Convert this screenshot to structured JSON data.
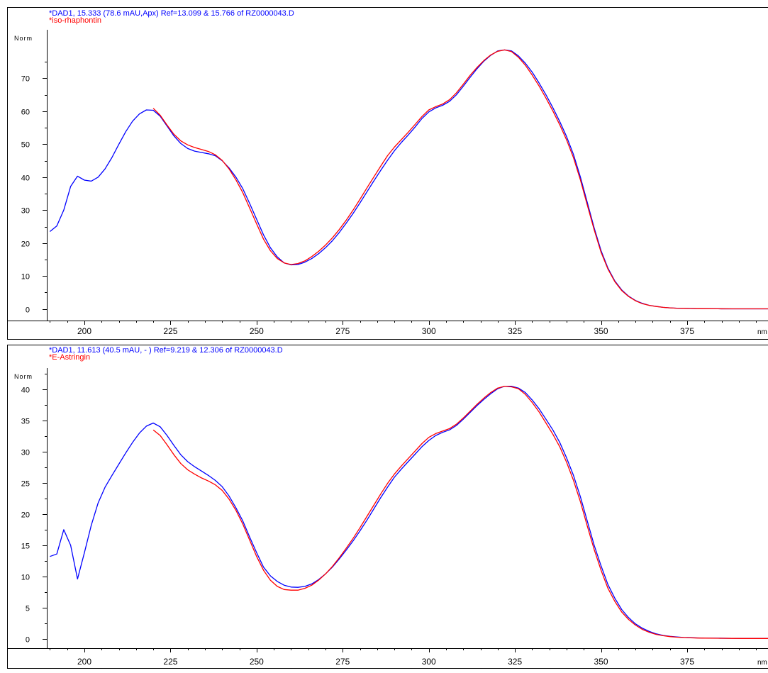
{
  "colors": {
    "blue": "#0000ff",
    "red": "#ff0000",
    "axis": "#000000"
  },
  "chart_data": [
    {
      "type": "line",
      "header_blue": "*DAD1, 15.333 (78.6 mAU,Apx) Ref=13.099 & 15.766 of RZ0000043.D",
      "header_red": "*iso-rhaphontin",
      "ylabel": "Norm",
      "xunit": "nm",
      "xlim": [
        190,
        400
      ],
      "ylim": [
        -3.5,
        83
      ],
      "xticks": [
        200,
        225,
        250,
        275,
        300,
        325,
        350,
        375
      ],
      "yticks": [
        0,
        10,
        20,
        30,
        40,
        50,
        60,
        70
      ],
      "series": [
        {
          "color": "blue",
          "x": [
            190,
            192,
            194,
            196,
            198,
            200,
            202,
            204,
            206,
            208,
            210,
            212,
            214,
            216,
            218,
            220,
            222,
            224,
            226,
            228,
            230,
            232,
            234,
            236,
            238,
            240,
            242,
            244,
            246,
            248,
            250,
            252,
            254,
            256,
            258,
            260,
            262,
            264,
            266,
            268,
            270,
            272,
            274,
            276,
            278,
            280,
            282,
            284,
            286,
            288,
            290,
            292,
            294,
            296,
            298,
            300,
            302,
            304,
            306,
            308,
            310,
            312,
            314,
            316,
            318,
            320,
            322,
            324,
            326,
            328,
            330,
            332,
            334,
            336,
            338,
            340,
            342,
            344,
            346,
            348,
            350,
            352,
            354,
            356,
            358,
            360,
            362,
            364,
            366,
            368,
            370,
            372,
            374,
            376,
            378,
            380,
            384,
            388,
            392,
            396,
            400
          ],
          "y": [
            23.5,
            25.2,
            30,
            37.2,
            40.3,
            39.1,
            38.8,
            40,
            42.5,
            46,
            50,
            53.8,
            57,
            59.2,
            60.4,
            60.3,
            58.5,
            55.5,
            52.5,
            50.2,
            48.7,
            47.9,
            47.5,
            47.1,
            46.5,
            45,
            42.8,
            40,
            36.5,
            32,
            27.2,
            22.5,
            18.6,
            15.8,
            14,
            13.4,
            13.5,
            14.2,
            15.3,
            16.8,
            18.6,
            20.7,
            23.2,
            26,
            29,
            32.2,
            35.5,
            38.8,
            42,
            45.1,
            48,
            50.5,
            52.8,
            55.2,
            57.8,
            59.8,
            61,
            61.8,
            63,
            65,
            67.6,
            70.3,
            72.9,
            75.2,
            77,
            78.3,
            78.6,
            78.3,
            76.8,
            74.6,
            71.9,
            68.6,
            65,
            61.1,
            56.9,
            52.3,
            46.9,
            40.1,
            32.4,
            24.6,
            17.7,
            12.4,
            8.5,
            5.8,
            3.9,
            2.6,
            1.7,
            1.1,
            0.8,
            0.5,
            0.35,
            0.25,
            0.2,
            0.15,
            0.12,
            0.1,
            0.08,
            0.05,
            0.05,
            0.05,
            0.05
          ]
        },
        {
          "color": "red",
          "x": [
            220,
            222,
            224,
            226,
            228,
            230,
            232,
            234,
            236,
            238,
            240,
            242,
            244,
            246,
            248,
            250,
            252,
            254,
            256,
            258,
            260,
            262,
            264,
            266,
            268,
            270,
            272,
            274,
            276,
            278,
            280,
            282,
            284,
            286,
            288,
            290,
            292,
            294,
            296,
            298,
            300,
            302,
            304,
            306,
            308,
            310,
            312,
            314,
            316,
            318,
            320,
            322,
            324,
            326,
            328,
            330,
            332,
            334,
            336,
            338,
            340,
            342,
            344,
            346,
            348,
            350,
            352,
            354,
            356,
            358,
            360,
            362,
            364,
            366,
            368,
            370,
            372,
            374,
            376,
            378,
            380,
            384,
            388,
            392,
            396,
            400
          ],
          "y": [
            60.9,
            58.8,
            55.8,
            53,
            51,
            49.8,
            49,
            48.4,
            47.8,
            46.8,
            45.1,
            42.5,
            39.2,
            35.3,
            30.6,
            25.8,
            21.2,
            17.7,
            15.3,
            14,
            13.5,
            13.8,
            14.6,
            15.9,
            17.5,
            19.4,
            21.6,
            24.1,
            26.9,
            30,
            33.3,
            36.7,
            40,
            43.3,
            46.5,
            49.1,
            51.4,
            53.6,
            56,
            58.4,
            60.4,
            61.4,
            62.2,
            63.5,
            65.6,
            68.2,
            70.9,
            73.3,
            75.4,
            77.1,
            78.2,
            78.6,
            78.1,
            76.4,
            74,
            71,
            67.7,
            64,
            60.1,
            55.9,
            51.3,
            45.9,
            39.2,
            31.6,
            24,
            17.2,
            12.1,
            8.3,
            5.6,
            3.8,
            2.5,
            1.6,
            1.1,
            0.75,
            0.5,
            0.35,
            0.25,
            0.2,
            0.15,
            0.12,
            0.1,
            0.08,
            0.05,
            0.05,
            0.05,
            0.05
          ]
        }
      ]
    },
    {
      "type": "line",
      "header_blue": "*DAD1, 11.613 (40.5 mAU, - ) Ref=9.219 & 12.306 of RZ0000043.D",
      "header_red": "*E-Astringin",
      "ylabel": "Norm",
      "xunit": "nm",
      "xlim": [
        190,
        400
      ],
      "ylim": [
        -1.5,
        42.5
      ],
      "xticks": [
        200,
        225,
        250,
        275,
        300,
        325,
        350,
        375
      ],
      "yticks": [
        0,
        5,
        10,
        15,
        20,
        25,
        30,
        35,
        40
      ],
      "series": [
        {
          "color": "blue",
          "x": [
            190,
            192,
            194,
            196,
            198,
            200,
            202,
            204,
            206,
            208,
            210,
            212,
            214,
            216,
            218,
            220,
            222,
            224,
            226,
            228,
            230,
            232,
            234,
            236,
            238,
            240,
            242,
            244,
            246,
            248,
            250,
            252,
            254,
            256,
            258,
            260,
            262,
            264,
            266,
            268,
            270,
            272,
            274,
            276,
            278,
            280,
            282,
            284,
            286,
            288,
            290,
            292,
            294,
            296,
            298,
            300,
            302,
            304,
            306,
            308,
            310,
            312,
            314,
            316,
            318,
            320,
            322,
            324,
            326,
            328,
            330,
            332,
            334,
            336,
            338,
            340,
            342,
            344,
            346,
            348,
            350,
            352,
            354,
            356,
            358,
            360,
            362,
            364,
            366,
            368,
            370,
            372,
            374,
            376,
            378,
            380,
            384,
            388,
            392,
            396,
            400
          ],
          "y": [
            13.2,
            13.6,
            17.5,
            15,
            9.6,
            13.8,
            18.2,
            21.8,
            24.3,
            26.2,
            28,
            29.8,
            31.5,
            33,
            34.1,
            34.6,
            34,
            32.6,
            31,
            29.5,
            28.4,
            27.6,
            26.9,
            26.2,
            25.4,
            24.4,
            22.9,
            21,
            18.9,
            16.3,
            13.8,
            11.5,
            10.1,
            9.2,
            8.6,
            8.3,
            8.25,
            8.4,
            8.8,
            9.5,
            10.4,
            11.5,
            12.8,
            14.2,
            15.7,
            17.3,
            19,
            20.8,
            22.6,
            24.3,
            25.9,
            27.2,
            28.4,
            29.6,
            30.8,
            31.8,
            32.6,
            33.1,
            33.5,
            34.2,
            35.2,
            36.3,
            37.4,
            38.4,
            39.3,
            40.1,
            40.5,
            40.5,
            40.2,
            39.5,
            38.3,
            36.9,
            35.2,
            33.5,
            31.5,
            29,
            26.2,
            22.8,
            18.9,
            15,
            11.7,
            8.7,
            6.5,
            4.7,
            3.4,
            2.4,
            1.7,
            1.2,
            0.8,
            0.55,
            0.4,
            0.3,
            0.22,
            0.18,
            0.15,
            0.12,
            0.1,
            0.08,
            0.06,
            0.06,
            0.06
          ]
        },
        {
          "color": "red",
          "x": [
            220,
            222,
            224,
            226,
            228,
            230,
            232,
            234,
            236,
            238,
            240,
            242,
            244,
            246,
            248,
            250,
            252,
            254,
            256,
            258,
            260,
            262,
            264,
            266,
            268,
            270,
            272,
            274,
            276,
            278,
            280,
            282,
            284,
            286,
            288,
            290,
            292,
            294,
            296,
            298,
            300,
            302,
            304,
            306,
            308,
            310,
            312,
            314,
            316,
            318,
            320,
            322,
            324,
            326,
            328,
            330,
            332,
            334,
            336,
            338,
            340,
            342,
            344,
            346,
            348,
            350,
            352,
            354,
            356,
            358,
            360,
            362,
            364,
            366,
            368,
            370,
            372,
            374,
            376,
            378,
            380,
            384,
            388,
            392,
            396,
            400
          ],
          "y": [
            33.5,
            32.6,
            31.1,
            29.5,
            28.1,
            27.1,
            26.4,
            25.8,
            25.3,
            24.7,
            23.8,
            22.4,
            20.6,
            18.4,
            15.8,
            13.2,
            11,
            9.4,
            8.4,
            7.9,
            7.8,
            7.8,
            8.1,
            8.6,
            9.4,
            10.4,
            11.6,
            13,
            14.5,
            16.1,
            17.8,
            19.6,
            21.4,
            23.2,
            24.9,
            26.4,
            27.7,
            28.9,
            30.1,
            31.3,
            32.3,
            32.9,
            33.3,
            33.7,
            34.4,
            35.4,
            36.5,
            37.6,
            38.6,
            39.5,
            40.2,
            40.5,
            40.4,
            40.1,
            39.2,
            37.9,
            36.4,
            34.6,
            32.8,
            30.8,
            28.3,
            25.4,
            22,
            18.1,
            14.3,
            11,
            8.1,
            6,
            4.3,
            3.1,
            2.2,
            1.5,
            1.05,
            0.7,
            0.5,
            0.35,
            0.26,
            0.2,
            0.16,
            0.13,
            0.11,
            0.09,
            0.07,
            0.06,
            0.06,
            0.06
          ]
        }
      ]
    }
  ]
}
